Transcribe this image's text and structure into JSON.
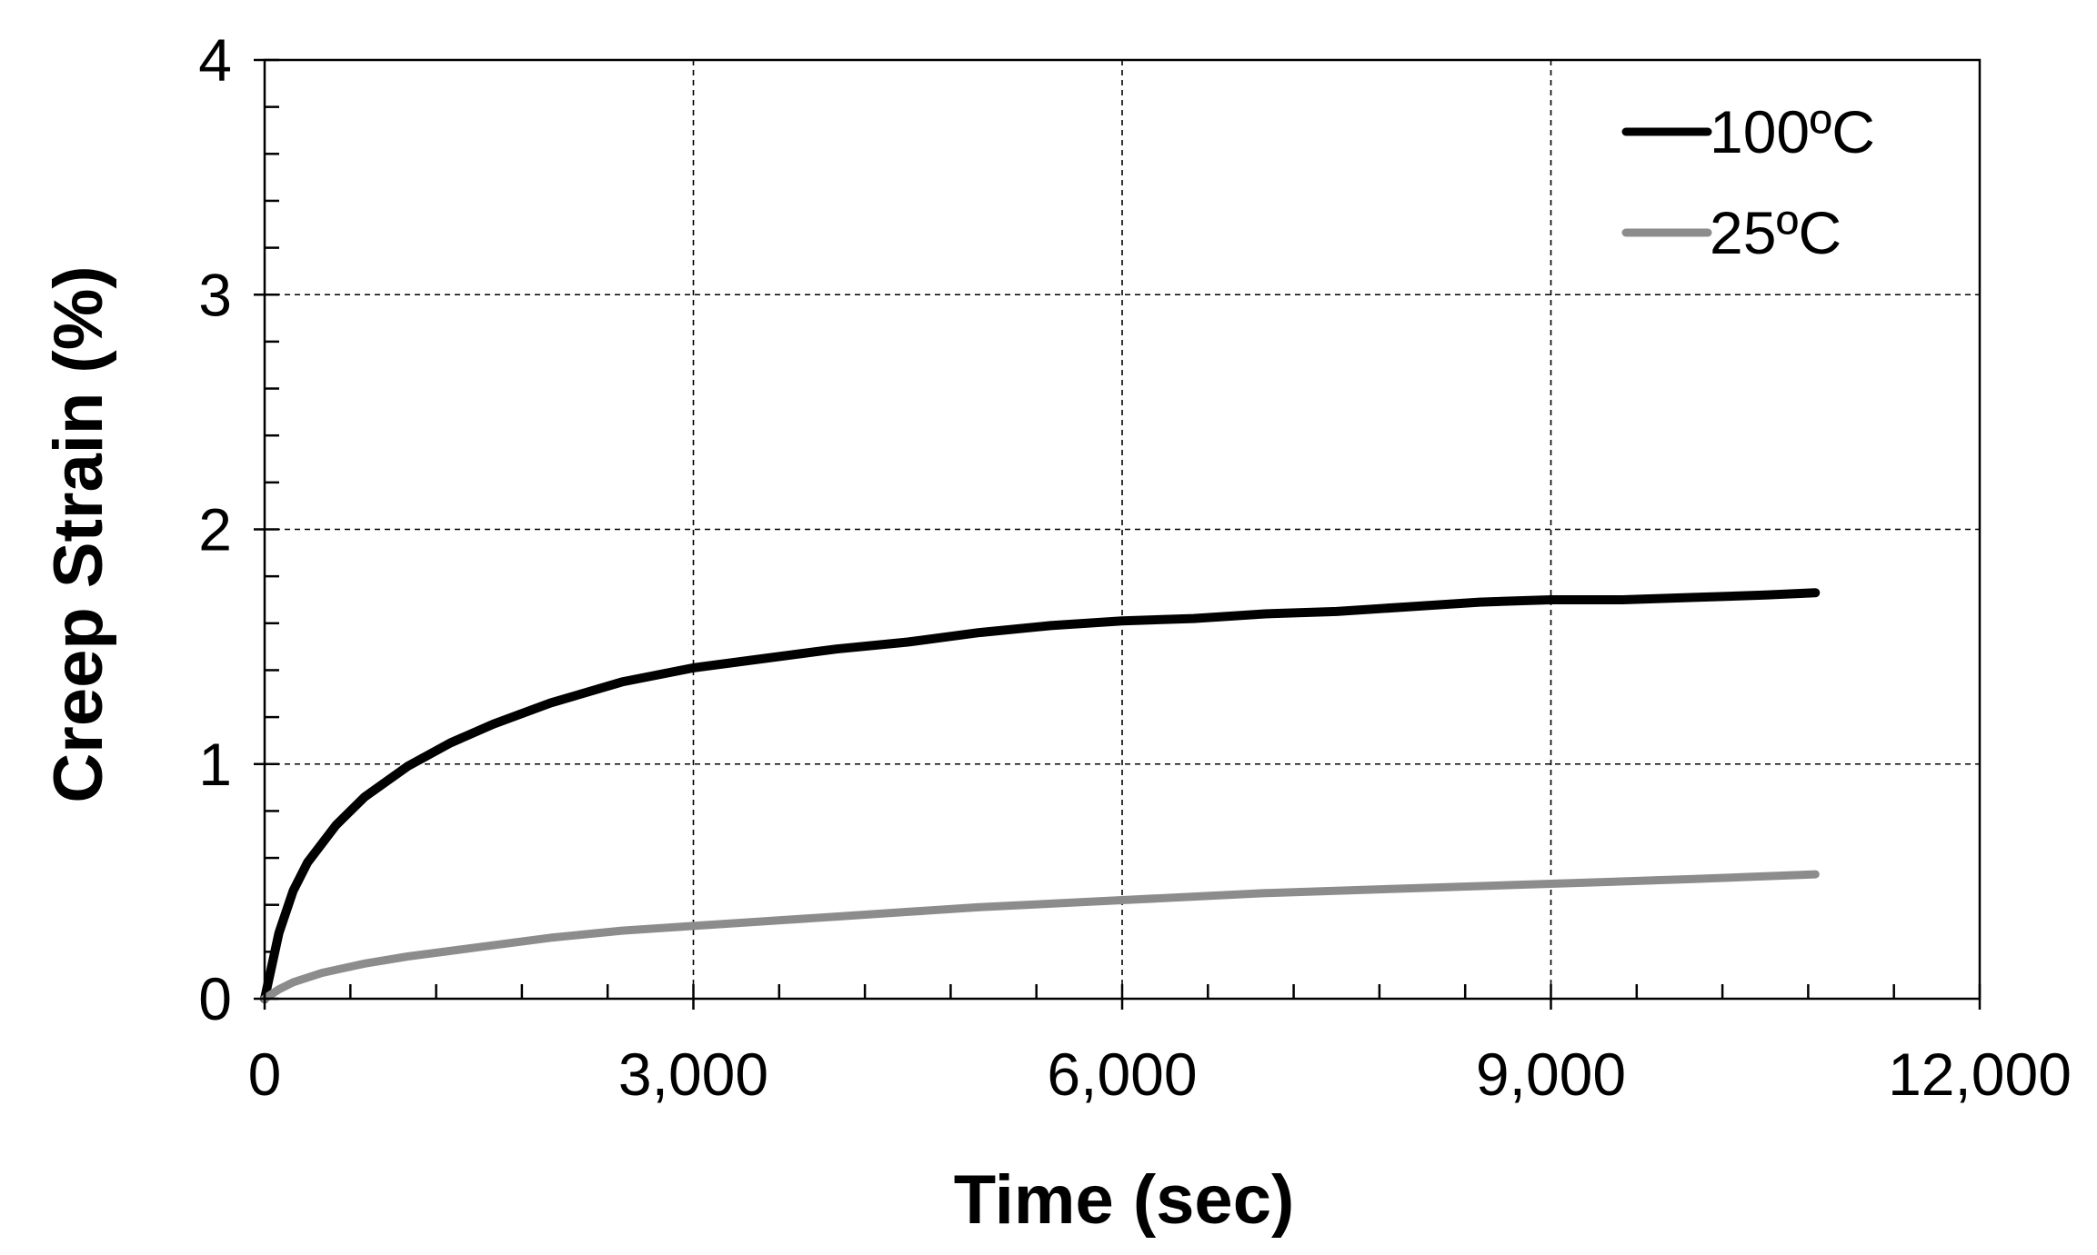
{
  "chart_data": {
    "type": "line",
    "title": "",
    "xlabel": "Time (sec)",
    "ylabel": "Creep Strain (%)",
    "xlim": [
      0,
      12000
    ],
    "ylim": [
      0,
      4
    ],
    "x_ticks": [
      0,
      3000,
      6000,
      9000,
      12000
    ],
    "x_tick_labels": [
      "0",
      "3,000",
      "6,000",
      "9,000",
      "12,000"
    ],
    "y_ticks": [
      0,
      1,
      2,
      3,
      4
    ],
    "y_tick_labels": [
      "0",
      "1",
      "2",
      "3",
      "4"
    ],
    "x_minor_step": 600,
    "y_minor_step": 0.2,
    "grid": true,
    "legend_position": "top-right",
    "series": [
      {
        "name": "100ºC",
        "color": "#000000",
        "x": [
          0,
          100,
          200,
          300,
          500,
          700,
          1000,
          1300,
          1600,
          2000,
          2500,
          3000,
          3500,
          4000,
          4500,
          5000,
          5500,
          6000,
          6500,
          7000,
          7500,
          8000,
          8500,
          9000,
          9500,
          10000,
          10500,
          10850
        ],
        "y": [
          0,
          0.28,
          0.46,
          0.58,
          0.74,
          0.86,
          0.99,
          1.09,
          1.17,
          1.26,
          1.35,
          1.41,
          1.45,
          1.49,
          1.52,
          1.56,
          1.59,
          1.61,
          1.62,
          1.64,
          1.65,
          1.67,
          1.69,
          1.7,
          1.7,
          1.71,
          1.72,
          1.73
        ]
      },
      {
        "name": "25ºC",
        "color": "#8c8c8c",
        "x": [
          0,
          100,
          200,
          400,
          700,
          1000,
          1500,
          2000,
          2500,
          3000,
          3500,
          4000,
          4500,
          5000,
          6000,
          7000,
          8000,
          9000,
          10000,
          10850
        ],
        "y": [
          0,
          0.04,
          0.07,
          0.11,
          0.15,
          0.18,
          0.22,
          0.26,
          0.29,
          0.31,
          0.33,
          0.35,
          0.37,
          0.39,
          0.42,
          0.45,
          0.47,
          0.49,
          0.51,
          0.53
        ]
      }
    ]
  }
}
